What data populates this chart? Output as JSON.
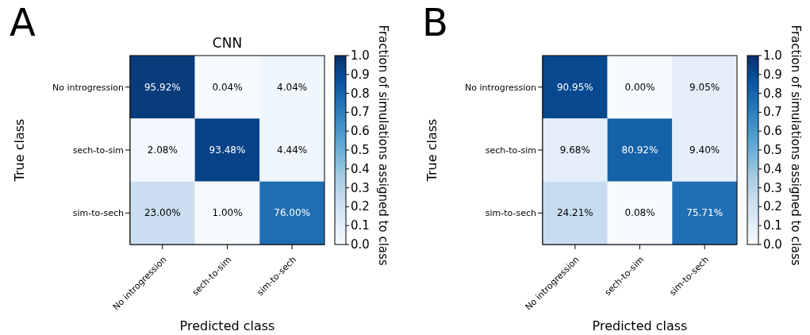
{
  "chart_data": [
    {
      "type": "heatmap",
      "title": "CNN",
      "xlabel": "Predicted class",
      "ylabel": "True class",
      "clabel": "Fraction of simulations assigned to class",
      "annotations": [
        "A"
      ],
      "categories": [
        "No introgression",
        "sech-to-sim",
        "sim-to-sech"
      ],
      "y_categories": [
        "No introgression",
        "sech-to-sim",
        "sim-to-sech"
      ],
      "cells": [
        [
          0.9592,
          0.0004,
          0.0404
        ],
        [
          0.0208,
          0.9348,
          0.0444
        ],
        [
          0.23,
          0.01,
          0.76
        ]
      ],
      "cell_labels": [
        [
          "95.92%",
          "0.04%",
          "4.04%"
        ],
        [
          "2.08%",
          "93.48%",
          "4.44%"
        ],
        [
          "23.00%",
          "1.00%",
          "76.00%"
        ]
      ],
      "clim": [
        0,
        1
      ],
      "cticks": [
        {
          "value": 0,
          "label": "0.0"
        },
        {
          "value": 0.1,
          "label": "0.1"
        },
        {
          "value": 0.2,
          "label": "0.2"
        },
        {
          "value": 0.3,
          "label": "0.3"
        },
        {
          "value": 0.4,
          "label": "0.4"
        },
        {
          "value": 0.5,
          "label": "0.5"
        },
        {
          "value": 0.6,
          "label": "0.6"
        },
        {
          "value": 0.7,
          "label": "0.7"
        },
        {
          "value": 0.8,
          "label": "0.8"
        },
        {
          "value": 0.9,
          "label": "0.9"
        },
        {
          "value": 1,
          "label": "1.0"
        }
      ]
    },
    {
      "type": "heatmap",
      "xlabel": "Predicted class",
      "ylabel": "True class",
      "clabel": "Fraction of simulations assigned to class",
      "annotations": [
        "B"
      ],
      "categories": [
        "No introgression",
        "sech-to-sim",
        "sim-to-sech"
      ],
      "y_categories": [
        "No introgression",
        "sech-to-sim",
        "sim-to-sech"
      ],
      "cells": [
        [
          0.9095,
          0.0,
          0.0905
        ],
        [
          0.0968,
          0.8092,
          0.094
        ],
        [
          0.2421,
          0.0008,
          0.7571
        ]
      ],
      "cell_labels": [
        [
          "90.95%",
          "0.00%",
          "9.05%"
        ],
        [
          "9.68%",
          "80.92%",
          "9.40%"
        ],
        [
          "24.21%",
          "0.08%",
          "75.71%"
        ]
      ],
      "clim": [
        0,
        1
      ],
      "cticks": [
        {
          "value": 0,
          "label": "0.0"
        },
        {
          "value": 0.1,
          "label": "0.1"
        },
        {
          "value": 0.2,
          "label": "0.2"
        },
        {
          "value": 0.3,
          "label": "0.3"
        },
        {
          "value": 0.4,
          "label": "0.4"
        },
        {
          "value": 0.5,
          "label": "0.5"
        },
        {
          "value": 0.6,
          "label": "0.6"
        },
        {
          "value": 0.7,
          "label": "0.7"
        },
        {
          "value": 0.8,
          "label": "0.8"
        },
        {
          "value": 0.9,
          "label": "0.9"
        },
        {
          "value": 1,
          "label": "1.0"
        }
      ]
    }
  ]
}
